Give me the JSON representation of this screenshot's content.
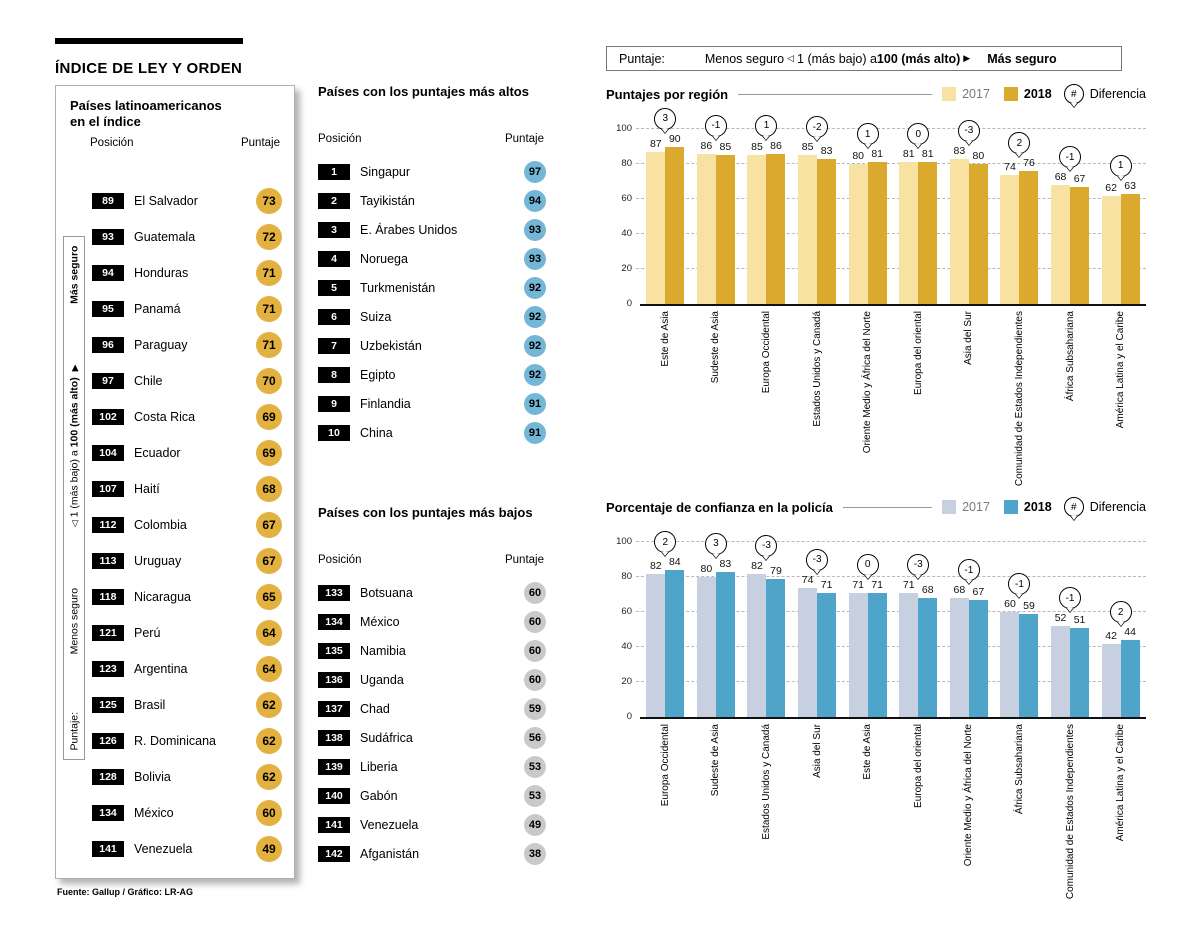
{
  "page_title": "ÍNDICE DE LEY Y ORDEN",
  "source": "Fuente: Gallup / Gráfico: LR-AG",
  "scale_legend": {
    "prefix": "Puntaje:",
    "less": "Menos seguro",
    "left_arrow": "◁",
    "range_pre": "1 (más bajo) a",
    "range_bold": "100 (más alto)",
    "right_arrow": "▶",
    "more": "Más seguro"
  },
  "ui_colors": {
    "gold_circle": "#E2B140",
    "blue_circle": "#74B6D6",
    "gray_circle": "#C9C9C9",
    "position_badge_bg": "#000000"
  },
  "latam_panel": {
    "title": "Países latinoamericanos en el índice",
    "col_position": "Posición",
    "col_score": "Puntaje",
    "rows": [
      {
        "pos": "89",
        "country": "El Salvador",
        "score": "73"
      },
      {
        "pos": "93",
        "country": "Guatemala",
        "score": "72"
      },
      {
        "pos": "94",
        "country": "Honduras",
        "score": "71"
      },
      {
        "pos": "95",
        "country": "Panamá",
        "score": "71"
      },
      {
        "pos": "96",
        "country": "Paraguay",
        "score": "71"
      },
      {
        "pos": "97",
        "country": "Chile",
        "score": "70"
      },
      {
        "pos": "102",
        "country": "Costa Rica",
        "score": "69"
      },
      {
        "pos": "104",
        "country": "Ecuador",
        "score": "69"
      },
      {
        "pos": "107",
        "country": "Haití",
        "score": "68"
      },
      {
        "pos": "112",
        "country": "Colombia",
        "score": "67"
      },
      {
        "pos": "113",
        "country": "Uruguay",
        "score": "67"
      },
      {
        "pos": "118",
        "country": "Nicaragua",
        "score": "65"
      },
      {
        "pos": "121",
        "country": "Perú",
        "score": "64"
      },
      {
        "pos": "123",
        "country": "Argentina",
        "score": "64"
      },
      {
        "pos": "125",
        "country": "Brasil",
        "score": "62"
      },
      {
        "pos": "126",
        "country": "R. Dominicana",
        "score": "62"
      },
      {
        "pos": "128",
        "country": "Bolivia",
        "score": "62"
      },
      {
        "pos": "134",
        "country": "México",
        "score": "60"
      },
      {
        "pos": "141",
        "country": "Venezuela",
        "score": "49"
      }
    ]
  },
  "highest_panel": {
    "title": "Países con los puntajes más altos",
    "col_position": "Posición",
    "col_score": "Puntaje",
    "rows": [
      {
        "pos": "1",
        "country": "Singapur",
        "score": "97"
      },
      {
        "pos": "2",
        "country": "Tayikistán",
        "score": "94"
      },
      {
        "pos": "3",
        "country": "E. Árabes Unidos",
        "score": "93"
      },
      {
        "pos": "4",
        "country": "Noruega",
        "score": "93"
      },
      {
        "pos": "5",
        "country": "Turkmenistán",
        "score": "92"
      },
      {
        "pos": "6",
        "country": "Suiza",
        "score": "92"
      },
      {
        "pos": "7",
        "country": "Uzbekistán",
        "score": "92"
      },
      {
        "pos": "8",
        "country": "Egipto",
        "score": "92"
      },
      {
        "pos": "9",
        "country": "Finlandia",
        "score": "91"
      },
      {
        "pos": "10",
        "country": "China",
        "score": "91"
      }
    ]
  },
  "lowest_panel": {
    "title": "Países con los puntajes más bajos",
    "col_position": "Posición",
    "col_score": "Puntaje",
    "rows": [
      {
        "pos": "133",
        "country": "Botsuana",
        "score": "60"
      },
      {
        "pos": "134",
        "country": "México",
        "score": "60"
      },
      {
        "pos": "135",
        "country": "Namibia",
        "score": "60"
      },
      {
        "pos": "136",
        "country": "Uganda",
        "score": "60"
      },
      {
        "pos": "137",
        "country": "Chad",
        "score": "59"
      },
      {
        "pos": "138",
        "country": "Sudáfrica",
        "score": "56"
      },
      {
        "pos": "139",
        "country": "Liberia",
        "score": "53"
      },
      {
        "pos": "140",
        "country": "Gabón",
        "score": "53"
      },
      {
        "pos": "141",
        "country": "Venezuela",
        "score": "49"
      },
      {
        "pos": "142",
        "country": "Afganistán",
        "score": "38"
      }
    ]
  },
  "chart_data": [
    {
      "type": "bar",
      "title": "Puntajes por región",
      "legend": {
        "y2017": "2017",
        "y2018": "2018",
        "diff_symbol": "#",
        "diff_label": "Diferencia"
      },
      "legend_position": "top-right",
      "grid": "dashed",
      "ylim": [
        0,
        100
      ],
      "yticks": [
        0,
        20,
        40,
        60,
        80,
        100
      ],
      "colors": [
        "#F7E2A2",
        "#DCA92F"
      ],
      "categories": [
        "Este de Asia",
        "Sudeste de Asia",
        "Europa Occidental",
        "Estados Unidos y Canadá",
        "Oriente Medio y África del Norte",
        "Europa del oriental",
        "Asia del Sur",
        "Comunidad de Estados Independientes",
        "África Subsahariana",
        "América Latina y el Caribe"
      ],
      "series": [
        {
          "name": "2017",
          "values": [
            87,
            86,
            85,
            85,
            80,
            81,
            83,
            74,
            68,
            62
          ]
        },
        {
          "name": "2018",
          "values": [
            90,
            85,
            86,
            83,
            81,
            81,
            80,
            76,
            67,
            63
          ]
        }
      ],
      "diff": [
        3,
        -1,
        1,
        -2,
        1,
        0,
        -3,
        2,
        -1,
        1
      ]
    },
    {
      "type": "bar",
      "title": "Porcentaje de confianza en la policía",
      "legend": {
        "y2017": "2017",
        "y2018": "2018",
        "diff_symbol": "#",
        "diff_label": "Diferencia"
      },
      "legend_position": "top-right",
      "grid": "dashed",
      "ylim": [
        0,
        100
      ],
      "yticks": [
        0,
        20,
        40,
        60,
        80,
        100
      ],
      "colors": [
        "#C7D0E1",
        "#4FA4C9"
      ],
      "categories": [
        "Europa Occidental",
        "Sudeste de Asia",
        "Estados Unidos y Canadá",
        "Asia del Sur",
        "Este de Asia",
        "Europa del oriental",
        "Oriente Medio y África del Norte",
        "África Subsahariana",
        "Comunidad de Estados Independientes",
        "América Latina y el Caribe"
      ],
      "series": [
        {
          "name": "2017",
          "values": [
            82,
            80,
            82,
            74,
            71,
            71,
            68,
            60,
            52,
            42
          ]
        },
        {
          "name": "2018",
          "values": [
            84,
            83,
            79,
            71,
            71,
            68,
            67,
            59,
            51,
            44
          ]
        }
      ],
      "diff": [
        2,
        3,
        -3,
        -3,
        0,
        -3,
        -1,
        -1,
        -1,
        2
      ]
    }
  ]
}
